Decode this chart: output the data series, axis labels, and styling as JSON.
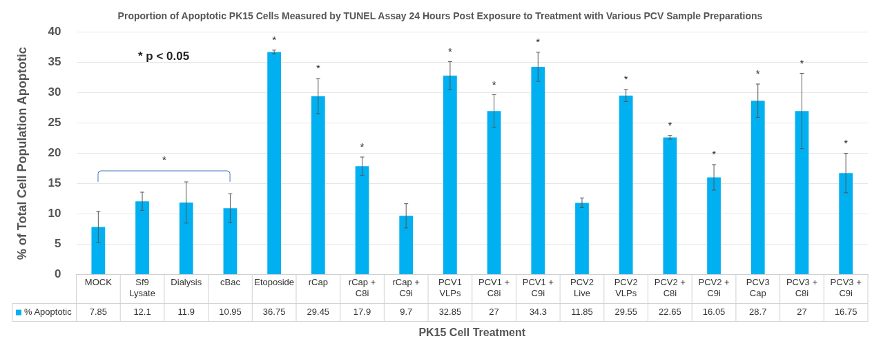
{
  "chart_data": {
    "type": "bar",
    "title": "Proportion of Apoptotic PK15 Cells Measured by TUNEL Assay 24 Hours Post Exposure to Treatment with Various PCV Sample Preparations",
    "xlabel": "PK15 Cell Treatment",
    "ylabel": "% of Total Cell Population Apoptotic",
    "categories": [
      "MOCK",
      "Sf9 Lysate",
      "Dialysis",
      "cBac",
      "Etoposide",
      "rCap",
      "rCap + C8i",
      "rCap + C9i",
      "PCV1 VLPs",
      "PCV1 + C8i",
      "PCV1 + C9i",
      "PCV2 Live",
      "PCV2 VLPs",
      "PCV2 + C8i",
      "PCV2 + C9i",
      "PCV3 Cap",
      "PCV3 + C8i",
      "PCV3 + C9i"
    ],
    "series": [
      {
        "name": "% Apoptotic",
        "color": "#00b0f0",
        "values": [
          7.85,
          12.1,
          11.9,
          10.95,
          36.75,
          29.45,
          17.9,
          9.7,
          32.85,
          27,
          34.3,
          11.85,
          29.55,
          22.65,
          16.05,
          28.7,
          27,
          16.75
        ],
        "errors": [
          2.6,
          1.5,
          3.4,
          2.4,
          0.3,
          2.9,
          1.5,
          2.0,
          2.3,
          2.7,
          2.4,
          0.8,
          1.0,
          0.3,
          2.1,
          2.75,
          6.2,
          3.25
        ]
      }
    ],
    "ylim": [
      0,
      40
    ],
    "yticks": [
      0,
      5,
      10,
      15,
      20,
      25,
      30,
      35,
      40
    ],
    "grid": "y",
    "data_labels": true,
    "annotations": [
      "* p < 0.05",
      "*",
      {
        "text": "*",
        "x": "Etoposide",
        "y": 36.75
      },
      {
        "text": "*",
        "x": "rCap",
        "y": 29.45
      },
      {
        "text": "*",
        "x": "rCap + C8i",
        "y": 17.9
      },
      {
        "text": "*",
        "x": "PCV1 VLPs",
        "y": 32.85
      },
      {
        "text": "*",
        "x": "PCV1 + C8i",
        "y": 27
      },
      {
        "text": "*",
        "x": "PCV1 + C9i",
        "y": 34.3
      },
      {
        "text": "*",
        "x": "PCV2 VLPs",
        "y": 29.55
      },
      {
        "text": "*",
        "x": "PCV2 + C8i",
        "y": 22.65
      },
      {
        "text": "*",
        "x": "PCV2 + C9i",
        "y": 16.05
      },
      {
        "text": "*",
        "x": "PCV3 Cap",
        "y": 28.7
      },
      {
        "text": "*",
        "x": "PCV3 + C8i",
        "y": 33.2
      },
      {
        "text": "*",
        "x": "PCV3 + C9i",
        "y": 16.75
      }
    ]
  }
}
